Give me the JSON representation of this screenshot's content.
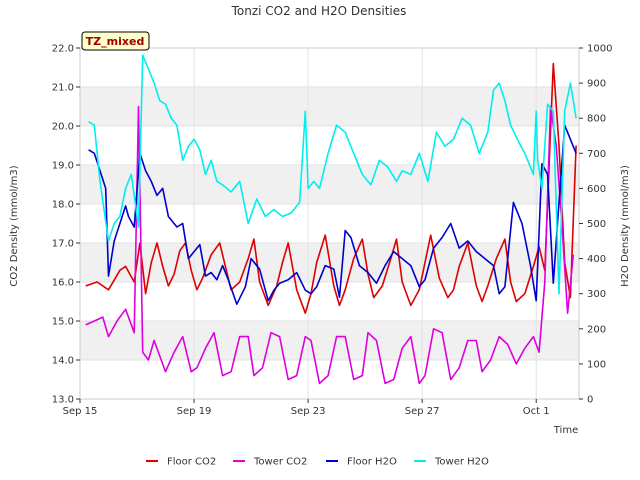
{
  "chart_data": {
    "type": "line",
    "title": "Tonzi CO2 and H2O Densities",
    "badge": "TZ_mixed",
    "xlabel": "Time",
    "ylabel_left": "CO2 Density (mmol/m3)",
    "ylabel_right": "H2O Density (mmol/m3)",
    "x_unit": "days since Sep 15",
    "xlim": [
      0,
      17.5
    ],
    "ylim_left": [
      13.0,
      22.0
    ],
    "ylim_right": [
      0,
      1000
    ],
    "x_ticks": [
      {
        "label": "Sep 15",
        "x": 0
      },
      {
        "label": "Sep 19",
        "x": 4
      },
      {
        "label": "Sep 23",
        "x": 8
      },
      {
        "label": "Sep 27",
        "x": 12
      },
      {
        "label": "Oct 1",
        "x": 16
      }
    ],
    "y_ticks_left": [
      "13.0",
      "14.0",
      "15.0",
      "16.0",
      "17.0",
      "18.0",
      "19.0",
      "20.0",
      "21.0",
      "22.0"
    ],
    "y_ticks_right": [
      "0",
      "100",
      "200",
      "300",
      "400",
      "500",
      "600",
      "700",
      "800",
      "900",
      "1000"
    ],
    "shaded_bands_left": [
      [
        14.0,
        15.0
      ],
      [
        16.0,
        17.0
      ],
      [
        18.0,
        19.0
      ],
      [
        20.0,
        21.0
      ]
    ],
    "colors": {
      "floor_co2": "#dd0000",
      "tower_co2": "#dd00dd",
      "floor_h2o": "#0000cc",
      "tower_h2o": "#00eeee"
    },
    "series": [
      {
        "name": "Floor CO2",
        "axis": "left",
        "color": "#dd0000",
        "x": [
          0.2,
          0.6,
          1.0,
          1.4,
          1.6,
          1.9,
          2.1,
          2.3,
          2.5,
          2.7,
          2.9,
          3.1,
          3.3,
          3.5,
          3.7,
          3.9,
          4.1,
          4.3,
          4.6,
          4.9,
          5.1,
          5.3,
          5.6,
          5.9,
          6.1,
          6.3,
          6.6,
          6.9,
          7.1,
          7.3,
          7.6,
          7.9,
          8.1,
          8.3,
          8.6,
          8.9,
          9.1,
          9.3,
          9.6,
          9.9,
          10.1,
          10.3,
          10.6,
          10.9,
          11.1,
          11.3,
          11.6,
          11.9,
          12.1,
          12.3,
          12.6,
          12.9,
          13.1,
          13.3,
          13.6,
          13.9,
          14.1,
          14.3,
          14.6,
          14.9,
          15.1,
          15.3,
          15.6,
          15.9,
          16.1,
          16.3,
          16.6,
          16.8,
          17.0,
          17.2,
          17.4
        ],
        "y": [
          15.9,
          16.0,
          15.8,
          16.3,
          16.4,
          16.0,
          17.0,
          15.7,
          16.5,
          17.0,
          16.4,
          15.9,
          16.2,
          16.8,
          17.0,
          16.3,
          15.8,
          16.1,
          16.7,
          17.0,
          16.4,
          15.8,
          16.0,
          16.6,
          17.1,
          16.0,
          15.4,
          15.9,
          16.5,
          17.0,
          15.8,
          15.2,
          15.7,
          16.5,
          17.2,
          15.9,
          15.4,
          15.8,
          16.6,
          17.1,
          16.2,
          15.6,
          15.9,
          16.6,
          17.1,
          16.0,
          15.4,
          15.8,
          16.5,
          17.2,
          16.1,
          15.6,
          15.8,
          16.4,
          17.0,
          15.9,
          15.5,
          15.9,
          16.6,
          17.1,
          16.0,
          15.5,
          15.7,
          16.4,
          16.9,
          16.3,
          21.6,
          19.5,
          16.5,
          15.6,
          19.5
        ]
      },
      {
        "name": "Tower CO2",
        "axis": "left",
        "color": "#dd00dd",
        "x": [
          0.2,
          0.5,
          0.8,
          1.0,
          1.3,
          1.6,
          1.9,
          2.05,
          2.2,
          2.4,
          2.6,
          2.8,
          3.0,
          3.3,
          3.6,
          3.9,
          4.1,
          4.4,
          4.7,
          5.0,
          5.3,
          5.6,
          5.9,
          6.1,
          6.4,
          6.7,
          7.0,
          7.3,
          7.6,
          7.9,
          8.1,
          8.4,
          8.7,
          9.0,
          9.3,
          9.6,
          9.9,
          10.1,
          10.4,
          10.7,
          11.0,
          11.3,
          11.6,
          11.9,
          12.1,
          12.4,
          12.7,
          13.0,
          13.3,
          13.6,
          13.9,
          14.1,
          14.4,
          14.7,
          15.0,
          15.3,
          15.6,
          15.9,
          16.1,
          16.3,
          16.5,
          16.7,
          16.9,
          17.1,
          17.3
        ],
        "y": [
          14.9,
          15.0,
          15.1,
          14.6,
          15.0,
          15.3,
          14.7,
          20.5,
          14.2,
          14.0,
          14.5,
          14.1,
          13.7,
          14.2,
          14.6,
          13.7,
          13.8,
          14.3,
          14.7,
          13.6,
          13.7,
          14.6,
          14.6,
          13.6,
          13.8,
          14.7,
          14.6,
          13.5,
          13.6,
          14.6,
          14.5,
          13.4,
          13.6,
          14.6,
          14.6,
          13.5,
          13.6,
          14.7,
          14.5,
          13.4,
          13.5,
          14.3,
          14.6,
          13.4,
          13.6,
          14.8,
          14.7,
          13.5,
          13.8,
          14.5,
          14.5,
          13.7,
          14.0,
          14.6,
          14.4,
          13.9,
          14.3,
          14.6,
          14.2,
          16.0,
          20.5,
          19.5,
          17.5,
          15.2,
          16.7
        ]
      },
      {
        "name": "Floor H2O",
        "axis": "right",
        "color": "#0000cc",
        "x": [
          0.3,
          0.5,
          0.7,
          0.9,
          1.0,
          1.2,
          1.4,
          1.6,
          1.7,
          1.9,
          2.1,
          2.3,
          2.5,
          2.7,
          2.9,
          3.1,
          3.4,
          3.6,
          3.8,
          4.0,
          4.2,
          4.4,
          4.6,
          4.8,
          5.0,
          5.2,
          5.5,
          5.8,
          6.0,
          6.3,
          6.6,
          6.8,
          7.0,
          7.3,
          7.6,
          7.9,
          8.1,
          8.3,
          8.6,
          8.9,
          9.1,
          9.3,
          9.5,
          9.8,
          10.1,
          10.4,
          10.7,
          11.0,
          11.3,
          11.6,
          11.9,
          12.1,
          12.4,
          12.7,
          13.0,
          13.3,
          13.6,
          13.9,
          14.2,
          14.5,
          14.7,
          14.9,
          15.2,
          15.5,
          15.8,
          16.0,
          16.2,
          16.4,
          16.6,
          16.8,
          17.0,
          17.2,
          17.4
        ],
        "y": [
          710,
          700,
          650,
          600,
          350,
          450,
          500,
          550,
          520,
          490,
          700,
          650,
          620,
          580,
          600,
          520,
          490,
          500,
          400,
          420,
          440,
          350,
          360,
          340,
          380,
          340,
          270,
          320,
          400,
          370,
          280,
          310,
          330,
          340,
          360,
          310,
          300,
          320,
          380,
          370,
          290,
          480,
          460,
          380,
          360,
          330,
          380,
          420,
          400,
          380,
          320,
          340,
          430,
          460,
          500,
          430,
          450,
          420,
          400,
          380,
          300,
          320,
          560,
          500,
          380,
          280,
          670,
          640,
          330,
          560,
          780,
          740,
          700
        ]
      },
      {
        "name": "Tower H2O",
        "axis": "right",
        "color": "#00eeee",
        "x": [
          0.3,
          0.5,
          0.7,
          1.0,
          1.2,
          1.4,
          1.6,
          1.8,
          1.9,
          2.05,
          2.2,
          2.4,
          2.6,
          2.8,
          3.0,
          3.2,
          3.4,
          3.6,
          3.8,
          4.0,
          4.2,
          4.4,
          4.6,
          4.8,
          5.0,
          5.3,
          5.6,
          5.9,
          6.2,
          6.5,
          6.8,
          7.1,
          7.4,
          7.7,
          7.9,
          8.0,
          8.2,
          8.4,
          8.7,
          9.0,
          9.3,
          9.6,
          9.9,
          10.2,
          10.5,
          10.8,
          11.1,
          11.3,
          11.6,
          11.9,
          12.2,
          12.5,
          12.8,
          13.1,
          13.4,
          13.7,
          14.0,
          14.3,
          14.5,
          14.7,
          14.9,
          15.1,
          15.4,
          15.6,
          15.9,
          16.0,
          16.05,
          16.2,
          16.4,
          16.6,
          16.8,
          17.0,
          17.2,
          17.4
        ],
        "y": [
          790,
          780,
          620,
          450,
          500,
          520,
          600,
          640,
          580,
          490,
          980,
          940,
          900,
          850,
          840,
          800,
          780,
          680,
          720,
          740,
          710,
          640,
          680,
          620,
          610,
          590,
          620,
          500,
          570,
          520,
          540,
          520,
          530,
          560,
          820,
          600,
          620,
          600,
          700,
          780,
          760,
          700,
          640,
          610,
          680,
          660,
          620,
          650,
          640,
          700,
          620,
          760,
          720,
          740,
          800,
          780,
          700,
          760,
          880,
          900,
          850,
          780,
          730,
          700,
          640,
          820,
          680,
          600,
          840,
          820,
          300,
          820,
          900,
          800
        ]
      }
    ]
  },
  "legend": [
    {
      "label": "Floor CO2",
      "color": "#dd0000"
    },
    {
      "label": "Tower CO2",
      "color": "#dd00dd"
    },
    {
      "label": "Floor H2O",
      "color": "#0000cc"
    },
    {
      "label": "Tower H2O",
      "color": "#00eeee"
    }
  ]
}
